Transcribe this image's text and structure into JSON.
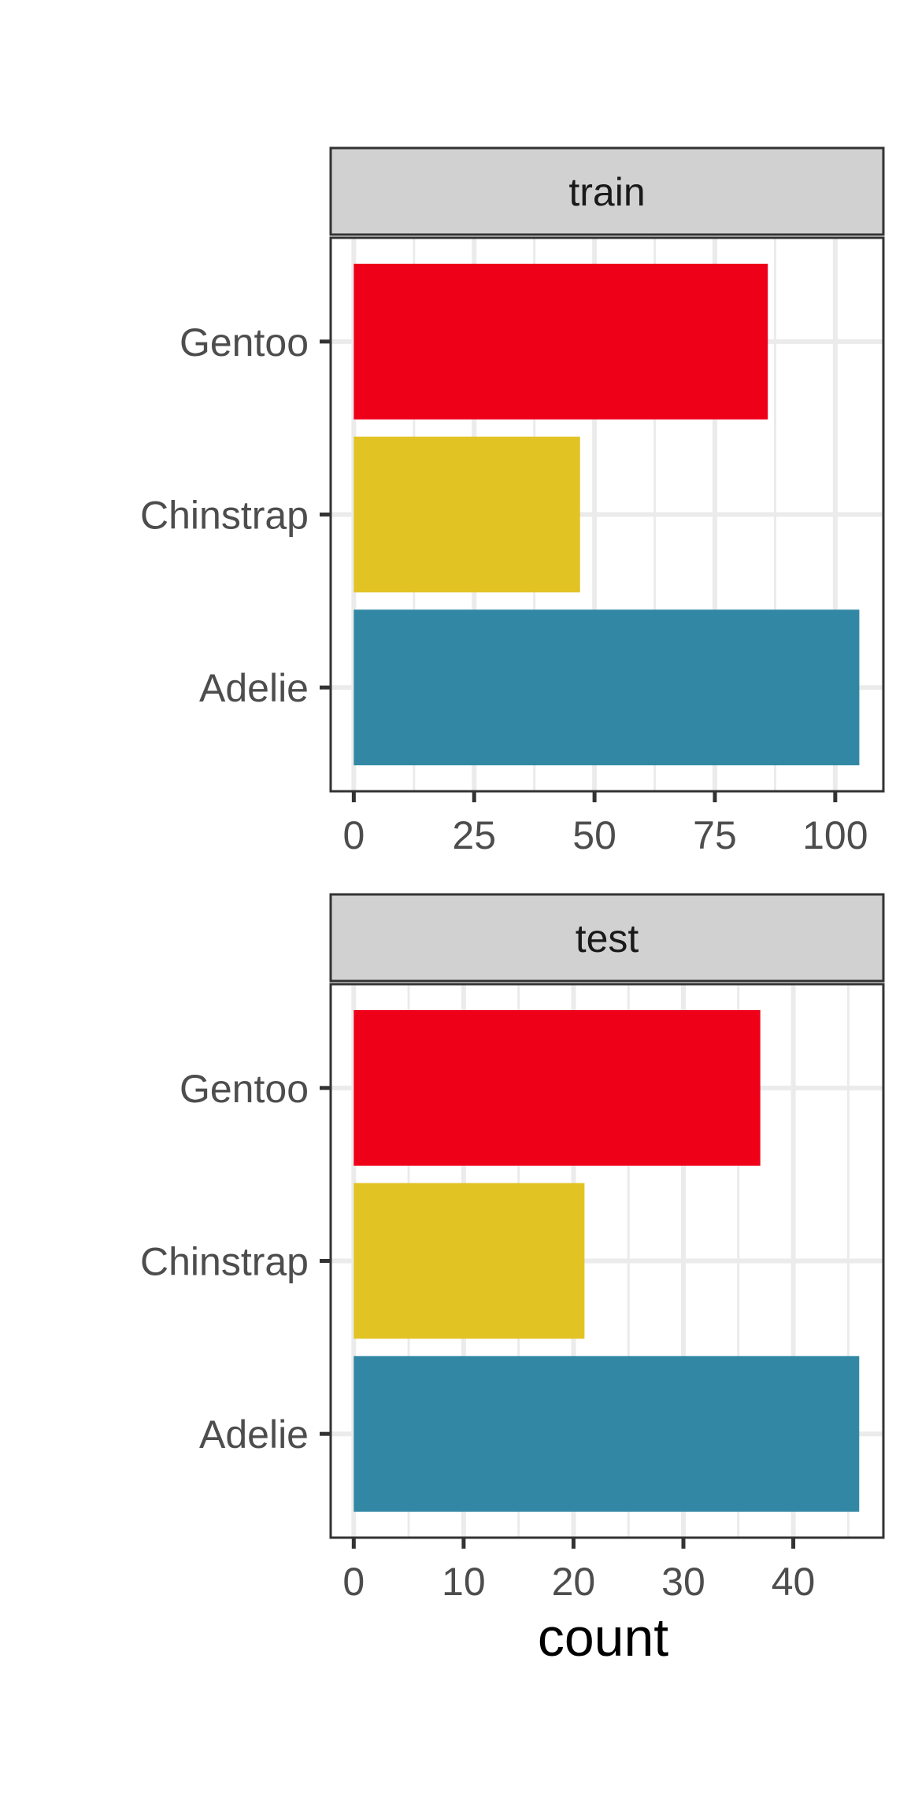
{
  "chart_data": {
    "type": "bar",
    "orientation": "horizontal",
    "xlabel": "count",
    "ylabel": "",
    "categories": [
      "Adelie",
      "Chinstrap",
      "Gentoo"
    ],
    "colors": {
      "Adelie": "#3288A4",
      "Chinstrap": "#E2C324",
      "Gentoo": "#EF0019"
    },
    "panel_background": "#ffffff",
    "strip_background": "#d1d1d1",
    "grid_color": "#ebebeb",
    "panels": [
      {
        "label": "train",
        "values": {
          "Adelie": 105,
          "Chinstrap": 47,
          "Gentoo": 86
        },
        "xlim": [
          -4.8,
          110
        ],
        "ticks": [
          0,
          25,
          50,
          75,
          100
        ],
        "minor_ticks": [
          12.5,
          37.5,
          62.5,
          87.5
        ],
        "tick_labels": [
          "0",
          "25",
          "50",
          "75",
          "100"
        ]
      },
      {
        "label": "test",
        "values": {
          "Adelie": 46,
          "Chinstrap": 21,
          "Gentoo": 37
        },
        "xlim": [
          -2.1,
          48.2
        ],
        "ticks": [
          0,
          10,
          20,
          30,
          40
        ],
        "minor_ticks": [
          5,
          15,
          25,
          35,
          45
        ],
        "tick_labels": [
          "0",
          "10",
          "20",
          "30",
          "40"
        ]
      }
    ]
  }
}
